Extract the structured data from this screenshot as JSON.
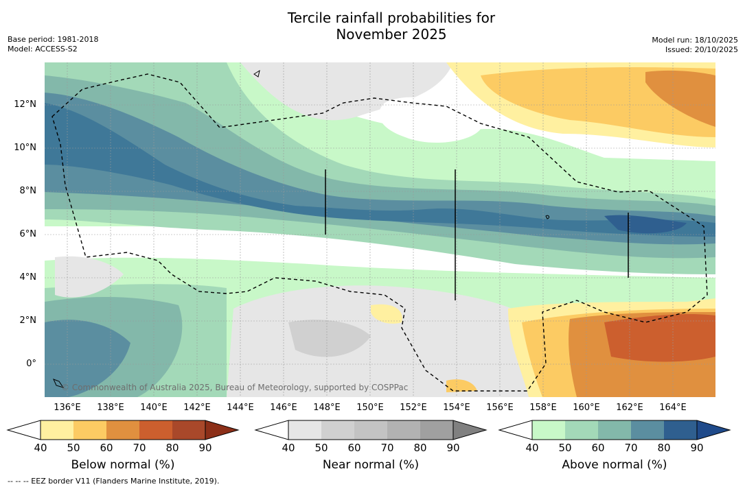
{
  "title_line1": "Tercile rainfall probabilities for",
  "title_line2": "November 2025",
  "base_period": "Base period: 1981-2018",
  "model": "Model: ACCESS-S2",
  "model_run": "Model run: 18/10/2025",
  "issued": "Issued: 20/10/2025",
  "map": {
    "lat_labels": [
      "12°N",
      "10°N",
      "8°N",
      "6°N",
      "4°N",
      "2°N",
      "0°"
    ],
    "lon_labels": [
      "136°E",
      "138°E",
      "140°E",
      "142°E",
      "144°E",
      "146°E",
      "148°E",
      "150°E",
      "152°E",
      "154°E",
      "156°E",
      "158°E",
      "160°E",
      "162°E",
      "164°E"
    ],
    "extent": {
      "lon_min": 135,
      "lon_max": 166,
      "lat_min": -1.5,
      "lat_max": 14
    },
    "copyright": "© Commonwealth of Australia 2025, Bureau of Meteorology, supported by COSPPac"
  },
  "colorbars": [
    {
      "label": "Below normal (%)",
      "ticks": [
        "40",
        "50",
        "60",
        "70",
        "80",
        "90"
      ],
      "colors": [
        "#ffffff",
        "#fff0a0",
        "#fccb63",
        "#e0903f",
        "#cc5f2e",
        "#a9482a",
        "#8c2f18"
      ]
    },
    {
      "label": "Near normal (%)",
      "ticks": [
        "40",
        "50",
        "60",
        "70",
        "80",
        "90"
      ],
      "colors": [
        "#ffffff",
        "#e6e6e6",
        "#d0d0d0",
        "#c3c3c3",
        "#b2b2b2",
        "#a0a0a0",
        "#808080"
      ]
    },
    {
      "label": "Above normal (%)",
      "ticks": [
        "40",
        "50",
        "60",
        "70",
        "80",
        "90"
      ],
      "colors": [
        "#ffffff",
        "#c8f8c8",
        "#a3d9b8",
        "#83b8aa",
        "#5b8ea0",
        "#2f5f8f",
        "#1f4a8a"
      ]
    }
  ],
  "footnote": "--  --  -- EEZ border V11 (Flanders Marine Institute, 2019)."
}
